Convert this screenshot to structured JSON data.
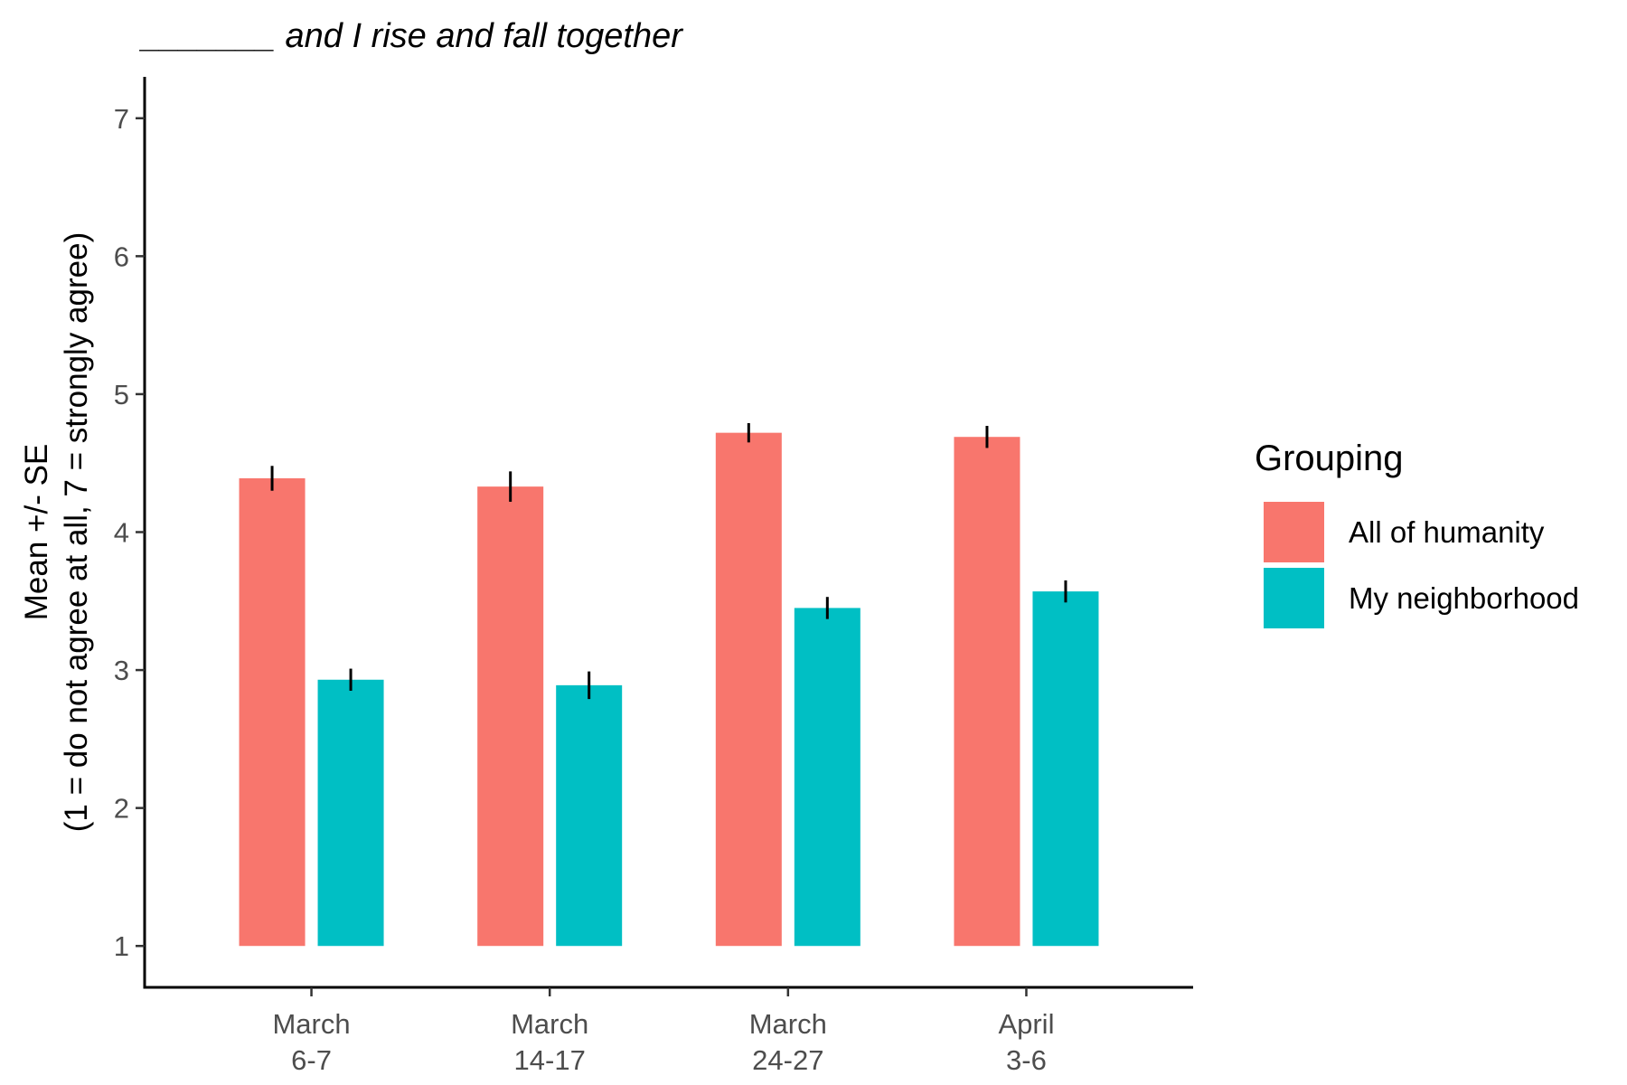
{
  "chart_data": {
    "type": "bar",
    "title": "_______ and I rise and fall together",
    "ylabel_lines": [
      "Mean +/- SE",
      "(1 = do not agree at all, 7 = strongly agree)"
    ],
    "xlabel": "",
    "categories": [
      [
        "March",
        "6-7"
      ],
      [
        "March",
        "14-17"
      ],
      [
        "March",
        "24-27"
      ],
      [
        "April",
        "3-6"
      ]
    ],
    "ylim": [
      0.7,
      7.3
    ],
    "yticks": [
      1,
      2,
      3,
      4,
      5,
      6,
      7
    ],
    "bar_base": 1,
    "series": [
      {
        "name": "All of humanity",
        "color": "#F8766D",
        "values": [
          4.39,
          4.33,
          4.72,
          4.69
        ],
        "se": [
          0.09,
          0.11,
          0.07,
          0.08
        ]
      },
      {
        "name": "My neighborhood",
        "color": "#00BFC4",
        "values": [
          2.93,
          2.89,
          3.45,
          3.57
        ],
        "se": [
          0.08,
          0.1,
          0.08,
          0.08
        ]
      }
    ],
    "legend": {
      "title": "Grouping",
      "position": "right"
    },
    "grid": false
  }
}
